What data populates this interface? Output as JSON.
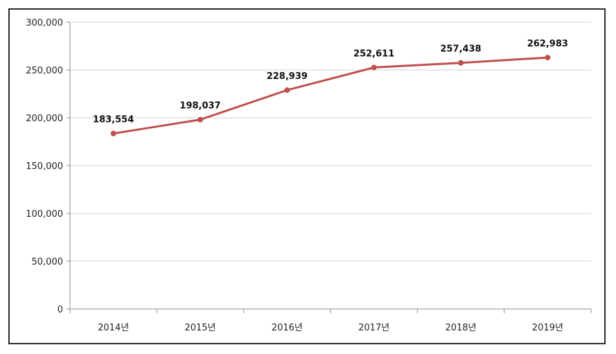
{
  "chart_data": {
    "type": "line",
    "title": "",
    "xlabel": "",
    "ylabel": "",
    "categories": [
      "2014년",
      "2015년",
      "2016년",
      "2017년",
      "2018년",
      "2019년"
    ],
    "series": [
      {
        "values": [
          183554,
          198037,
          228939,
          252611,
          257438,
          262983
        ]
      }
    ],
    "data_labels": [
      "183,554",
      "198,037",
      "228,939",
      "252,611",
      "257,438",
      "262,983"
    ],
    "ylim": [
      0,
      300000
    ],
    "yticks": [
      0,
      50000,
      100000,
      150000,
      200000,
      250000,
      300000
    ],
    "ytick_labels": [
      "0",
      "50,000",
      "100,000",
      "150,000",
      "200,000",
      "250,000",
      "300,000"
    ],
    "grid": true,
    "legend": "none",
    "colors": {
      "line": "#c0504d",
      "grid": "#d0d0d0",
      "axis": "#8c8c8c"
    }
  }
}
